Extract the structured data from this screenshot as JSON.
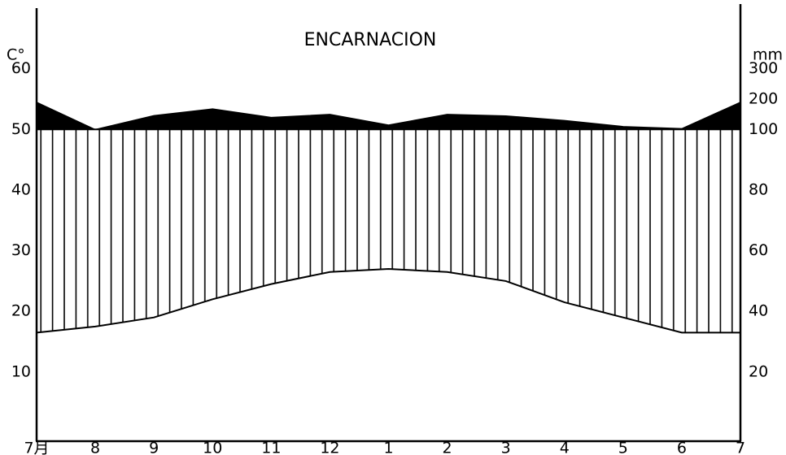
{
  "chart_data": {
    "type": "climate",
    "title": "ENCARNACION",
    "y_label": "C°",
    "y2_label": "mm",
    "categories": [
      "7月",
      "8",
      "9",
      "10",
      "11",
      "12",
      "1",
      "2",
      "3",
      "4",
      "5",
      "6",
      "7"
    ],
    "series": [
      {
        "name": "temperature",
        "color": "#000000",
        "axis": "y",
        "values": [
          16.5,
          17.5,
          19,
          22,
          24.5,
          26.5,
          27,
          26.5,
          25,
          21.5,
          19,
          16.5,
          16.5
        ]
      },
      {
        "name": "precipitation",
        "color": "#000000",
        "axis": "y2",
        "values": [
          190,
          100,
          146,
          168,
          140,
          150,
          115,
          150,
          145,
          130,
          110,
          103,
          190
        ]
      }
    ],
    "ylim": [
      -1,
      70
    ],
    "yticks": [
      10,
      20,
      30,
      40,
      50,
      60
    ],
    "y2lim": [
      -2,
      480
    ],
    "y2ticks": [
      20,
      40,
      60,
      80,
      100,
      200,
      300
    ],
    "y2_compressed_above": 100,
    "y2_compression": 10
  }
}
